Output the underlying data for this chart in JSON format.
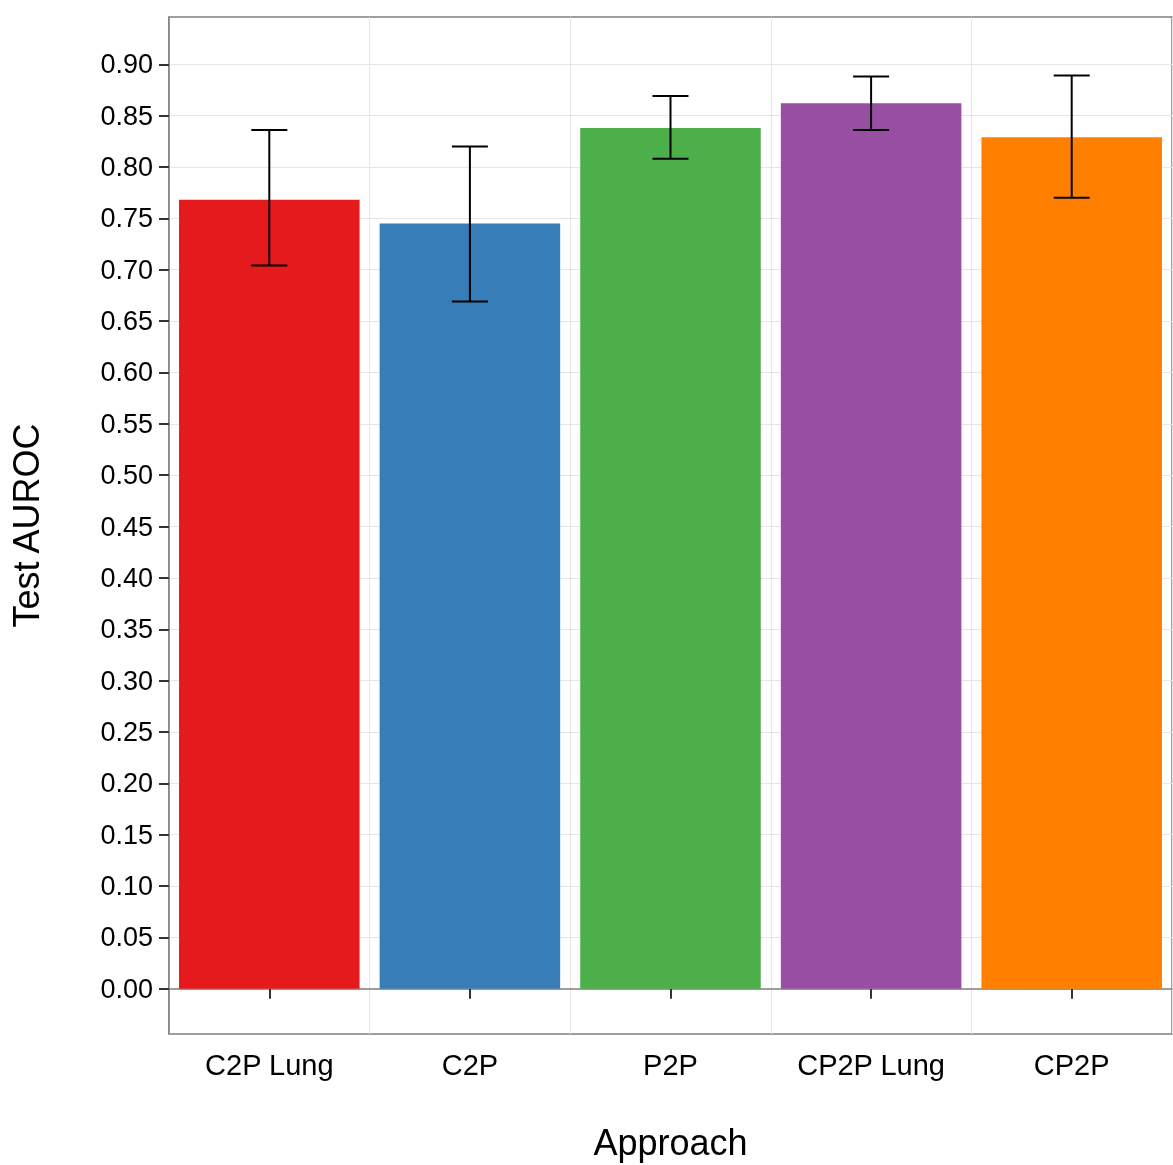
{
  "chart_data": {
    "type": "bar",
    "xlabel": "Approach",
    "ylabel": "Test AUROC",
    "categories": [
      "C2P Lung",
      "C2P",
      "P2P",
      "CP2P Lung",
      "CP2P"
    ],
    "values": [
      0.768,
      0.745,
      0.838,
      0.862,
      0.829
    ],
    "colors": [
      "#e41a1c",
      "#377eb8",
      "#4daf4a",
      "#984ea3",
      "#ff7f00"
    ],
    "errors": [
      [
        0.704,
        0.836
      ],
      [
        0.669,
        0.82
      ],
      [
        0.808,
        0.869
      ],
      [
        0.836,
        0.888
      ],
      [
        0.77,
        0.889
      ]
    ],
    "ylim": [
      -0.044,
      0.946
    ],
    "yticks": [
      {
        "value": 0,
        "label": "0.00"
      },
      {
        "value": 0.05,
        "label": "0.05"
      },
      {
        "value": 0.1,
        "label": "0.10"
      },
      {
        "value": 0.15,
        "label": "0.15"
      },
      {
        "value": 0.2,
        "label": "0.20"
      },
      {
        "value": 0.25,
        "label": "0.25"
      },
      {
        "value": 0.3,
        "label": "0.30"
      },
      {
        "value": 0.35,
        "label": "0.35"
      },
      {
        "value": 0.4,
        "label": "0.40"
      },
      {
        "value": 0.45,
        "label": "0.45"
      },
      {
        "value": 0.5,
        "label": "0.50"
      },
      {
        "value": 0.55,
        "label": "0.55"
      },
      {
        "value": 0.6,
        "label": "0.60"
      },
      {
        "value": 0.65,
        "label": "0.65"
      },
      {
        "value": 0.7,
        "label": "0.70"
      },
      {
        "value": 0.75,
        "label": "0.75"
      },
      {
        "value": 0.8,
        "label": "0.80"
      },
      {
        "value": 0.85,
        "label": "0.85"
      },
      {
        "value": 0.9,
        "label": "0.90"
      }
    ],
    "grid": true
  }
}
